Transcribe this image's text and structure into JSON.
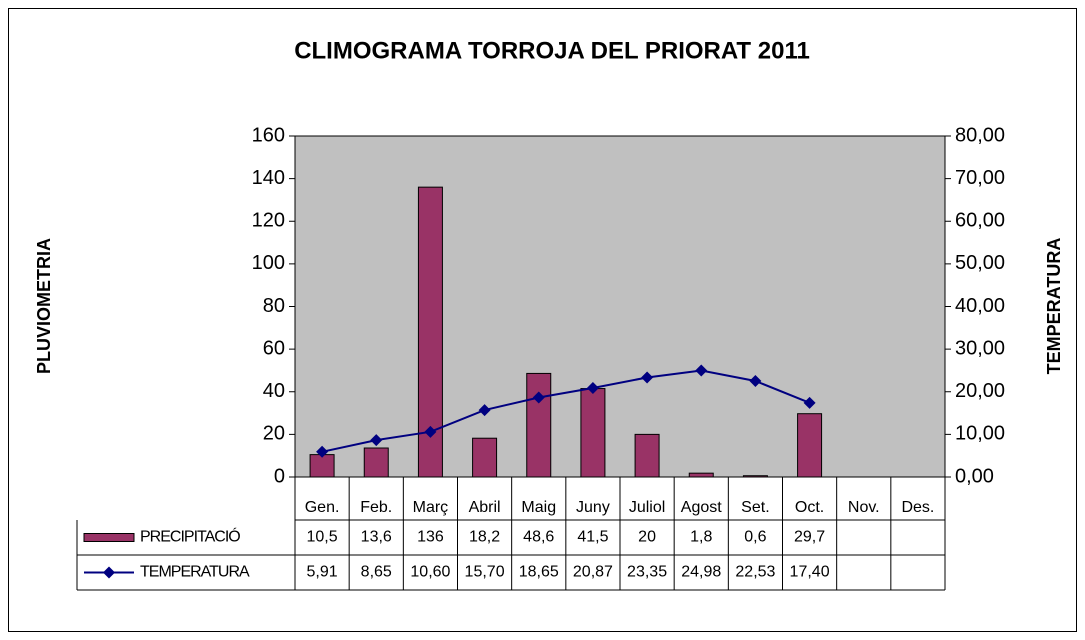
{
  "chart_data": {
    "type": "bar",
    "title": "CLIMOGRAMA TORROJA DEL PRIORAT 2011",
    "y_label": "PLUVIOMETRIA",
    "y2_label": "TEMPERATURA",
    "categories": [
      "Gen.",
      "Feb.",
      "Març",
      "Abril",
      "Maig",
      "Juny",
      "Juliol",
      "Agost",
      "Set.",
      "Oct.",
      "Nov.",
      "Des."
    ],
    "series": [
      {
        "name": "PRECIPITACIÓ",
        "type": "bar",
        "color": "#993366",
        "values": [
          10.5,
          13.6,
          136,
          18.2,
          48.6,
          41.5,
          20,
          1.8,
          0.6,
          29.7,
          null,
          null
        ],
        "value_labels": [
          "10,5",
          "13,6",
          "136",
          "18,2",
          "48,6",
          "41,5",
          "20",
          "1,8",
          "0,6",
          "29,7",
          null,
          null
        ]
      },
      {
        "name": "TEMPERATURA",
        "type": "line",
        "color": "#000080",
        "axis": "y2",
        "values": [
          5.91,
          8.65,
          10.6,
          15.7,
          18.65,
          20.87,
          23.35,
          24.98,
          22.53,
          17.4,
          null,
          null
        ],
        "value_labels": [
          "5,91",
          "8,65",
          "10,60",
          "15,70",
          "18,65",
          "20,87",
          "23,35",
          "24,98",
          "22,53",
          "17,40",
          null,
          null
        ]
      }
    ],
    "ylim": [
      0,
      160
    ],
    "yticks": [
      0,
      20,
      40,
      60,
      80,
      100,
      120,
      140,
      160
    ],
    "y2lim": [
      0,
      80
    ],
    "y2ticks": [
      {
        "value": 0,
        "label": "0,00"
      },
      {
        "value": 10,
        "label": "10,00"
      },
      {
        "value": 20,
        "label": "20,00"
      },
      {
        "value": 30,
        "label": "30,00"
      },
      {
        "value": 40,
        "label": "40,00"
      },
      {
        "value": 50,
        "label": "50,00"
      },
      {
        "value": 60,
        "label": "60,00"
      },
      {
        "value": 70,
        "label": "70,00"
      },
      {
        "value": 80,
        "label": "80,00"
      }
    ],
    "plot_background": "#c0c0c0"
  }
}
